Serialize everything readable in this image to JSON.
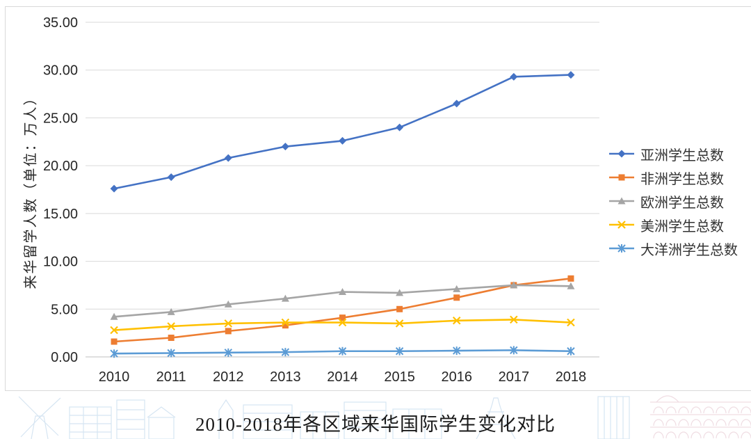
{
  "chart_data": {
    "type": "line",
    "x": [
      "2010",
      "2011",
      "2012",
      "2013",
      "2014",
      "2015",
      "2016",
      "2017",
      "2018"
    ],
    "series": [
      {
        "name": "亚洲学生总数",
        "color": "#4472C4",
        "marker": "diamond",
        "values": [
          17.6,
          18.8,
          20.8,
          22.0,
          22.6,
          24.0,
          26.5,
          29.3,
          29.5
        ]
      },
      {
        "name": "非洲学生总数",
        "color": "#ED7D31",
        "marker": "square",
        "values": [
          1.6,
          2.0,
          2.7,
          3.3,
          4.1,
          5.0,
          6.2,
          7.5,
          8.2
        ]
      },
      {
        "name": "欧洲学生总数",
        "color": "#A5A5A5",
        "marker": "triangle",
        "values": [
          4.2,
          4.7,
          5.5,
          6.1,
          6.8,
          6.7,
          7.1,
          7.5,
          7.4
        ]
      },
      {
        "name": "美洲学生总数",
        "color": "#FFC000",
        "marker": "x",
        "values": [
          2.8,
          3.2,
          3.5,
          3.6,
          3.6,
          3.5,
          3.8,
          3.9,
          3.6
        ]
      },
      {
        "name": "大洋洲学生总数",
        "color": "#5B9BD5",
        "marker": "asterisk",
        "values": [
          0.35,
          0.4,
          0.45,
          0.5,
          0.6,
          0.6,
          0.65,
          0.7,
          0.6
        ]
      }
    ],
    "title": "2010-2018年各区域来华国际学生变化对比",
    "xlabel": "",
    "ylabel": "来华留学人数（单位：万人）",
    "ylim": [
      0,
      35
    ],
    "ytick_step": 5,
    "yticks": [
      "0.00",
      "5.00",
      "10.00",
      "15.00",
      "20.00",
      "25.00",
      "30.00",
      "35.00"
    ],
    "grid": true,
    "legend_position": "right",
    "title_position": "bottom"
  },
  "styles": {
    "grid_color": "#d9d9d9",
    "axis_color": "#bfbfbf",
    "tick_text_color": "#262626",
    "line_width": 2.6
  }
}
